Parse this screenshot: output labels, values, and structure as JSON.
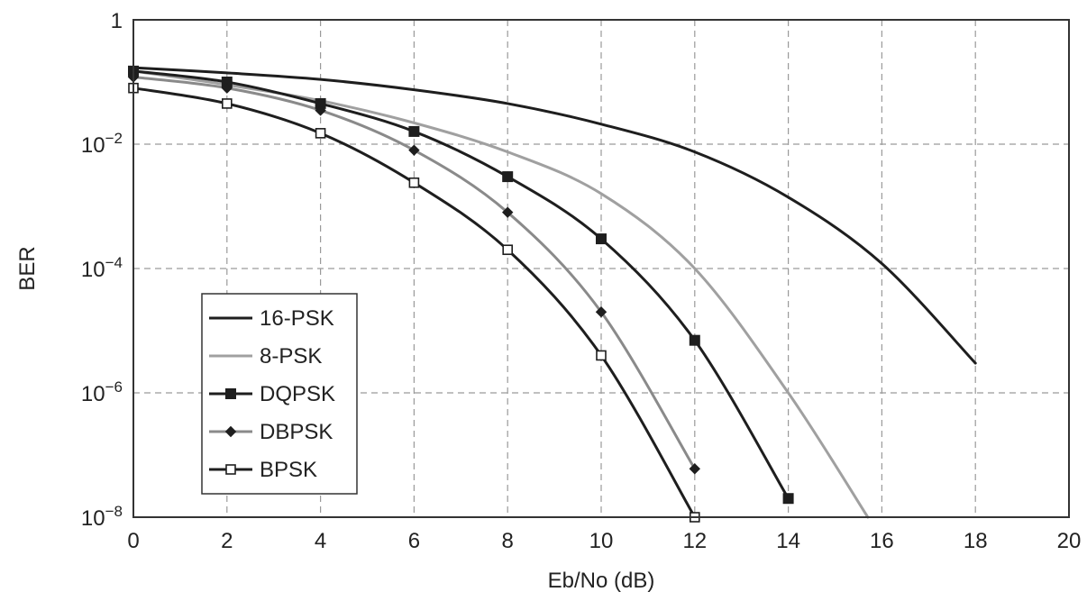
{
  "chart_data": {
    "type": "line",
    "xlabel": "Eb/No (dB)",
    "ylabel": "BER",
    "xlim": [
      0,
      20
    ],
    "ylim": [
      1e-08,
      1
    ],
    "y_scale": "log",
    "grid": true,
    "grid_style": "dashed",
    "legend_position": "lower-left",
    "x_ticks": [
      "0",
      "2",
      "4",
      "6",
      "8",
      "10",
      "12",
      "14",
      "16",
      "18",
      "20"
    ],
    "y_ticks": [
      {
        "base": "1",
        "exp": ""
      },
      {
        "base": "10",
        "exp": "−2"
      },
      {
        "base": "10",
        "exp": "−4"
      },
      {
        "base": "10",
        "exp": "−6"
      },
      {
        "base": "10",
        "exp": "−8"
      }
    ],
    "series": [
      {
        "name": "16-PSK",
        "color": "#1e1e1e",
        "marker": "none",
        "x": [
          0,
          2,
          4,
          6,
          8,
          10,
          12,
          14,
          16,
          18
        ],
        "y": [
          0.17,
          0.14,
          0.11,
          0.075,
          0.045,
          0.021,
          0.0075,
          0.0014,
          0.00012,
          3e-06
        ]
      },
      {
        "name": "8-PSK",
        "color": "#a0a0a0",
        "marker": "none",
        "x": [
          0,
          2,
          4,
          6,
          8,
          10,
          12,
          14,
          15.7
        ],
        "y": [
          0.15,
          0.09,
          0.05,
          0.022,
          0.0075,
          0.0016,
          0.0001,
          1e-06,
          1e-08
        ]
      },
      {
        "name": "DQPSK",
        "color": "#1e1e1e",
        "marker": "square-filled",
        "x": [
          0,
          2,
          4,
          6,
          8,
          10,
          12,
          14
        ],
        "y": [
          0.15,
          0.1,
          0.045,
          0.016,
          0.003,
          0.0003,
          7e-06,
          2e-08
        ]
      },
      {
        "name": "DBPSK",
        "color": "#8a8a8a",
        "marker": "diamond-filled",
        "x": [
          0,
          2,
          4,
          6,
          8,
          10,
          12
        ],
        "y": [
          0.12,
          0.08,
          0.035,
          0.008,
          0.0008,
          2e-05,
          6e-08
        ]
      },
      {
        "name": "BPSK",
        "color": "#1e1e1e",
        "marker": "square-open",
        "x": [
          0,
          2,
          4,
          6,
          8,
          10,
          12
        ],
        "y": [
          0.08,
          0.045,
          0.015,
          0.0024,
          0.0002,
          4e-06,
          1e-08
        ]
      }
    ]
  }
}
